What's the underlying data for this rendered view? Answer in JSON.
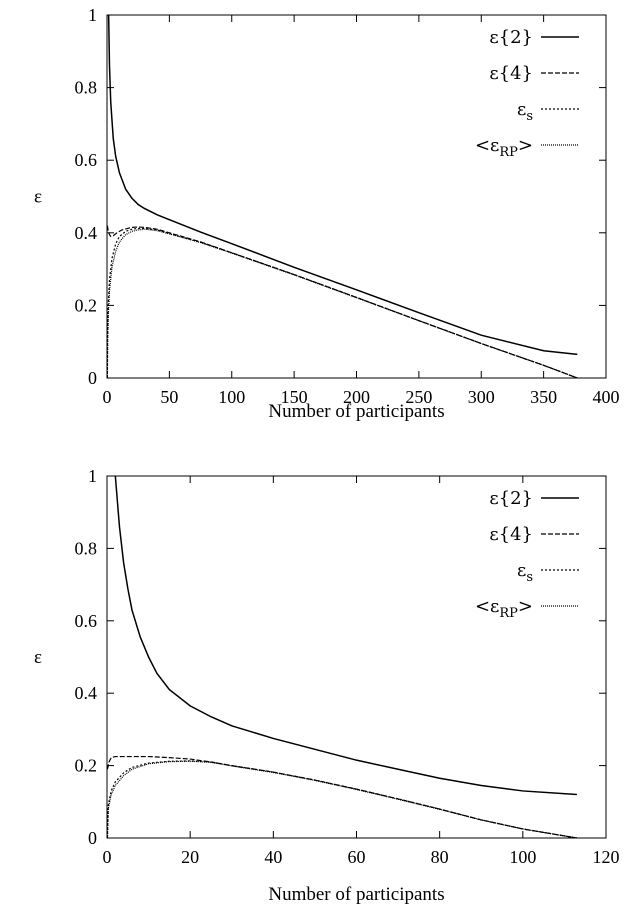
{
  "chart_data": [
    {
      "type": "line",
      "xlabel": "Number of participants",
      "ylabel": "ε",
      "xlim": [
        0,
        400
      ],
      "ylim": [
        0,
        1
      ],
      "xticks": [
        "0",
        "50",
        "100",
        "150",
        "200",
        "250",
        "300",
        "350",
        "400"
      ],
      "yticks": [
        "0",
        "0.2",
        "0.4",
        "0.6",
        "0.8",
        "1"
      ],
      "legend_position": "top-right",
      "series": [
        {
          "name": "ε{2}",
          "sub": "",
          "style": "solid",
          "points": [
            [
              1.3,
              1.0
            ],
            [
              2,
              0.86
            ],
            [
              3,
              0.76
            ],
            [
              5,
              0.66
            ],
            [
              7,
              0.61
            ],
            [
              10,
              0.565
            ],
            [
              15,
              0.52
            ],
            [
              20,
              0.495
            ],
            [
              25,
              0.478
            ],
            [
              30,
              0.467
            ],
            [
              40,
              0.45
            ],
            [
              50,
              0.436
            ],
            [
              75,
              0.402
            ],
            [
              100,
              0.37
            ],
            [
              150,
              0.305
            ],
            [
              200,
              0.243
            ],
            [
              250,
              0.18
            ],
            [
              300,
              0.118
            ],
            [
              350,
              0.075
            ],
            [
              377,
              0.065
            ]
          ]
        },
        {
          "name": "ε{4}",
          "sub": "",
          "style": "dashed",
          "points": [
            [
              0.3,
              0.42
            ],
            [
              1,
              0.405
            ],
            [
              2,
              0.395
            ],
            [
              3,
              0.39
            ],
            [
              5,
              0.392
            ],
            [
              8,
              0.4
            ],
            [
              12,
              0.408
            ],
            [
              20,
              0.415
            ],
            [
              25,
              0.416
            ],
            [
              30,
              0.415
            ],
            [
              40,
              0.41
            ],
            [
              50,
              0.4
            ],
            [
              75,
              0.375
            ],
            [
              100,
              0.345
            ],
            [
              150,
              0.285
            ],
            [
              200,
              0.222
            ],
            [
              250,
              0.158
            ],
            [
              300,
              0.095
            ],
            [
              350,
              0.035
            ],
            [
              377,
              0.0
            ]
          ]
        },
        {
          "name": "ε",
          "sub": "s",
          "style": "dotted",
          "points": [
            [
              0.3,
              0.0
            ],
            [
              0.5,
              0.12
            ],
            [
              1,
              0.2
            ],
            [
              2,
              0.27
            ],
            [
              4,
              0.33
            ],
            [
              7,
              0.37
            ],
            [
              10,
              0.39
            ],
            [
              15,
              0.404
            ],
            [
              20,
              0.41
            ],
            [
              25,
              0.412
            ],
            [
              30,
              0.412
            ],
            [
              40,
              0.408
            ],
            [
              50,
              0.398
            ],
            [
              75,
              0.374
            ],
            [
              100,
              0.345
            ],
            [
              150,
              0.285
            ],
            [
              200,
              0.222
            ],
            [
              250,
              0.158
            ],
            [
              300,
              0.095
            ],
            [
              350,
              0.035
            ],
            [
              377,
              0.0
            ]
          ]
        },
        {
          "name": "<ε",
          "sub": "RP",
          "suffix": ">",
          "style": "densedot",
          "points": [
            [
              0.3,
              0.0
            ],
            [
              0.5,
              0.1
            ],
            [
              1,
              0.17
            ],
            [
              2,
              0.24
            ],
            [
              4,
              0.305
            ],
            [
              7,
              0.35
            ],
            [
              10,
              0.375
            ],
            [
              15,
              0.395
            ],
            [
              20,
              0.404
            ],
            [
              25,
              0.408
            ],
            [
              30,
              0.41
            ],
            [
              40,
              0.406
            ],
            [
              50,
              0.397
            ],
            [
              75,
              0.373
            ],
            [
              100,
              0.344
            ],
            [
              150,
              0.284
            ],
            [
              200,
              0.221
            ],
            [
              250,
              0.158
            ],
            [
              300,
              0.095
            ],
            [
              350,
              0.035
            ],
            [
              377,
              0.0
            ]
          ]
        }
      ]
    },
    {
      "type": "line",
      "xlabel": "Number of participants",
      "ylabel": "ε",
      "xlim": [
        0,
        120
      ],
      "ylim": [
        0,
        1
      ],
      "xticks": [
        "0",
        "20",
        "40",
        "60",
        "80",
        "100",
        "120"
      ],
      "yticks": [
        "0",
        "0.2",
        "0.4",
        "0.6",
        "0.8",
        "1"
      ],
      "legend_position": "top-right",
      "series": [
        {
          "name": "ε{2}",
          "sub": "",
          "style": "solid",
          "points": [
            [
              2,
              1.0
            ],
            [
              3,
              0.86
            ],
            [
              4,
              0.76
            ],
            [
              5,
              0.69
            ],
            [
              6,
              0.63
            ],
            [
              8,
              0.555
            ],
            [
              10,
              0.5
            ],
            [
              12,
              0.455
            ],
            [
              15,
              0.41
            ],
            [
              20,
              0.365
            ],
            [
              25,
              0.335
            ],
            [
              30,
              0.31
            ],
            [
              40,
              0.275
            ],
            [
              50,
              0.245
            ],
            [
              60,
              0.215
            ],
            [
              70,
              0.19
            ],
            [
              80,
              0.165
            ],
            [
              90,
              0.145
            ],
            [
              100,
              0.13
            ],
            [
              113,
              0.12
            ]
          ]
        },
        {
          "name": "ε{4}",
          "sub": "",
          "style": "dashed",
          "points": [
            [
              0.1,
              0.19
            ],
            [
              0.5,
              0.21
            ],
            [
              1,
              0.222
            ],
            [
              2,
              0.225
            ],
            [
              5,
              0.225
            ],
            [
              10,
              0.225
            ],
            [
              15,
              0.222
            ],
            [
              20,
              0.218
            ],
            [
              25,
              0.21
            ],
            [
              30,
              0.2
            ],
            [
              40,
              0.182
            ],
            [
              50,
              0.16
            ],
            [
              60,
              0.135
            ],
            [
              70,
              0.108
            ],
            [
              80,
              0.08
            ],
            [
              90,
              0.05
            ],
            [
              100,
              0.025
            ],
            [
              113,
              0.0
            ]
          ]
        },
        {
          "name": "ε",
          "sub": "s",
          "style": "dotted",
          "points": [
            [
              0.1,
              0.0
            ],
            [
              0.3,
              0.09
            ],
            [
              1,
              0.13
            ],
            [
              2,
              0.155
            ],
            [
              4,
              0.18
            ],
            [
              6,
              0.195
            ],
            [
              10,
              0.207
            ],
            [
              15,
              0.212
            ],
            [
              20,
              0.213
            ],
            [
              25,
              0.21
            ],
            [
              30,
              0.2
            ],
            [
              40,
              0.182
            ],
            [
              50,
              0.16
            ],
            [
              60,
              0.135
            ],
            [
              70,
              0.108
            ],
            [
              80,
              0.08
            ],
            [
              90,
              0.05
            ],
            [
              100,
              0.025
            ],
            [
              113,
              0.0
            ]
          ]
        },
        {
          "name": "<ε",
          "sub": "RP",
          "suffix": ">",
          "style": "densedot",
          "points": [
            [
              0.1,
              0.0
            ],
            [
              0.3,
              0.08
            ],
            [
              1,
              0.12
            ],
            [
              2,
              0.145
            ],
            [
              4,
              0.172
            ],
            [
              6,
              0.19
            ],
            [
              10,
              0.205
            ],
            [
              15,
              0.211
            ],
            [
              20,
              0.212
            ],
            [
              25,
              0.209
            ],
            [
              30,
              0.199
            ],
            [
              40,
              0.181
            ],
            [
              50,
              0.159
            ],
            [
              60,
              0.134
            ],
            [
              70,
              0.107
            ],
            [
              80,
              0.079
            ],
            [
              90,
              0.05
            ],
            [
              100,
              0.025
            ],
            [
              113,
              0.0
            ]
          ]
        }
      ]
    }
  ]
}
